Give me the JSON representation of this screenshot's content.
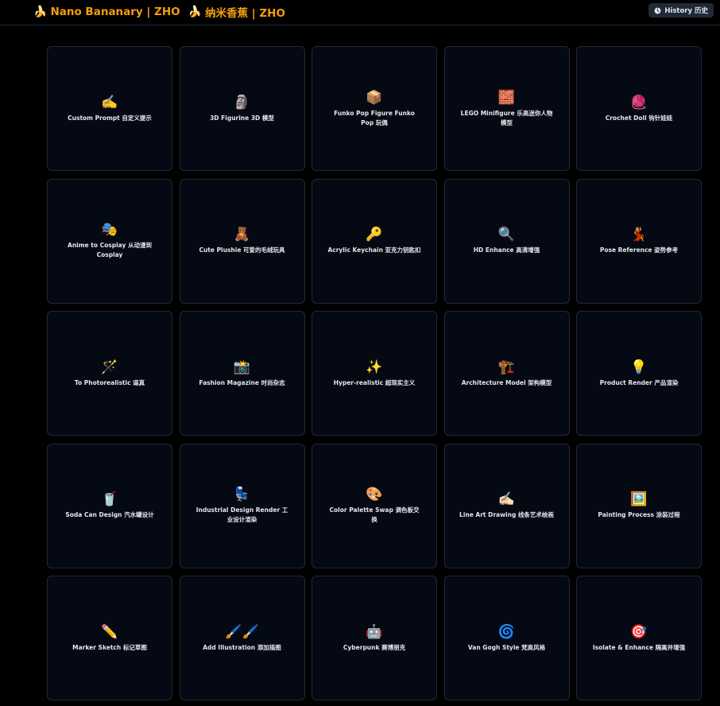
{
  "header": {
    "title": "Nano Bananary | ZHO",
    "title_cn": "纳米香蕉 | ZHO",
    "banana_icon": "🍌",
    "history_label": "History 历史",
    "accent_color": "#f59e0b"
  },
  "cards": [
    {
      "emoji": "✍️",
      "label": "Custom Prompt 自定义提示"
    },
    {
      "emoji": "🗿",
      "label": "3D Figurine 3D 模型"
    },
    {
      "emoji": "📦",
      "label": "Funko Pop Figure Funko Pop 玩偶"
    },
    {
      "emoji": "🧱",
      "label": "LEGO Minifigure 乐高迷你人物模型"
    },
    {
      "emoji": "🧶",
      "label": "Crochet Doll 钩针娃娃"
    },
    {
      "emoji": "🎭",
      "label": "Anime to Cosplay 从动漫到 Cosplay"
    },
    {
      "emoji": "🧸",
      "label": "Cute Plushie 可爱的毛绒玩具"
    },
    {
      "emoji": "🔑",
      "label": "Acrylic Keychain 亚克力钥匙扣"
    },
    {
      "emoji": "🔍",
      "label": "HD Enhance 高清增强"
    },
    {
      "emoji": "💃",
      "label": "Pose Reference 姿势参考"
    },
    {
      "emoji": "🪄",
      "label": "To Photorealistic 逼真"
    },
    {
      "emoji": "📸",
      "label": "Fashion Magazine 时尚杂志"
    },
    {
      "emoji": "✨",
      "label": "Hyper-realistic 超现实主义"
    },
    {
      "emoji": "🏗️",
      "label": "Architecture Model 架构模型"
    },
    {
      "emoji": "💡",
      "label": "Product Render 产品渲染"
    },
    {
      "emoji": "🥤",
      "label": "Soda Can Design 汽水罐设计"
    },
    {
      "emoji": "💺",
      "label": "Industrial Design Render 工业设计渲染"
    },
    {
      "emoji": "🎨",
      "label": "Color Palette Swap 调色板交换"
    },
    {
      "emoji": "✍🏻",
      "label": "Line Art Drawing 线条艺术绘画"
    },
    {
      "emoji": "🖼️",
      "label": "Painting Process 涂装过程"
    },
    {
      "emoji": "✏️",
      "label": "Marker Sketch 标记草图"
    },
    {
      "emoji": "🖌️🖌️",
      "label": "Add Illustration 添加插图"
    },
    {
      "emoji": "🤖",
      "label": "Cyberpunk 赛博朋克"
    },
    {
      "emoji": "🌀",
      "label": "Van Gogh Style 梵高风格"
    },
    {
      "emoji": "🎯",
      "label": "Isolate & Enhance 隔离并增强"
    }
  ]
}
